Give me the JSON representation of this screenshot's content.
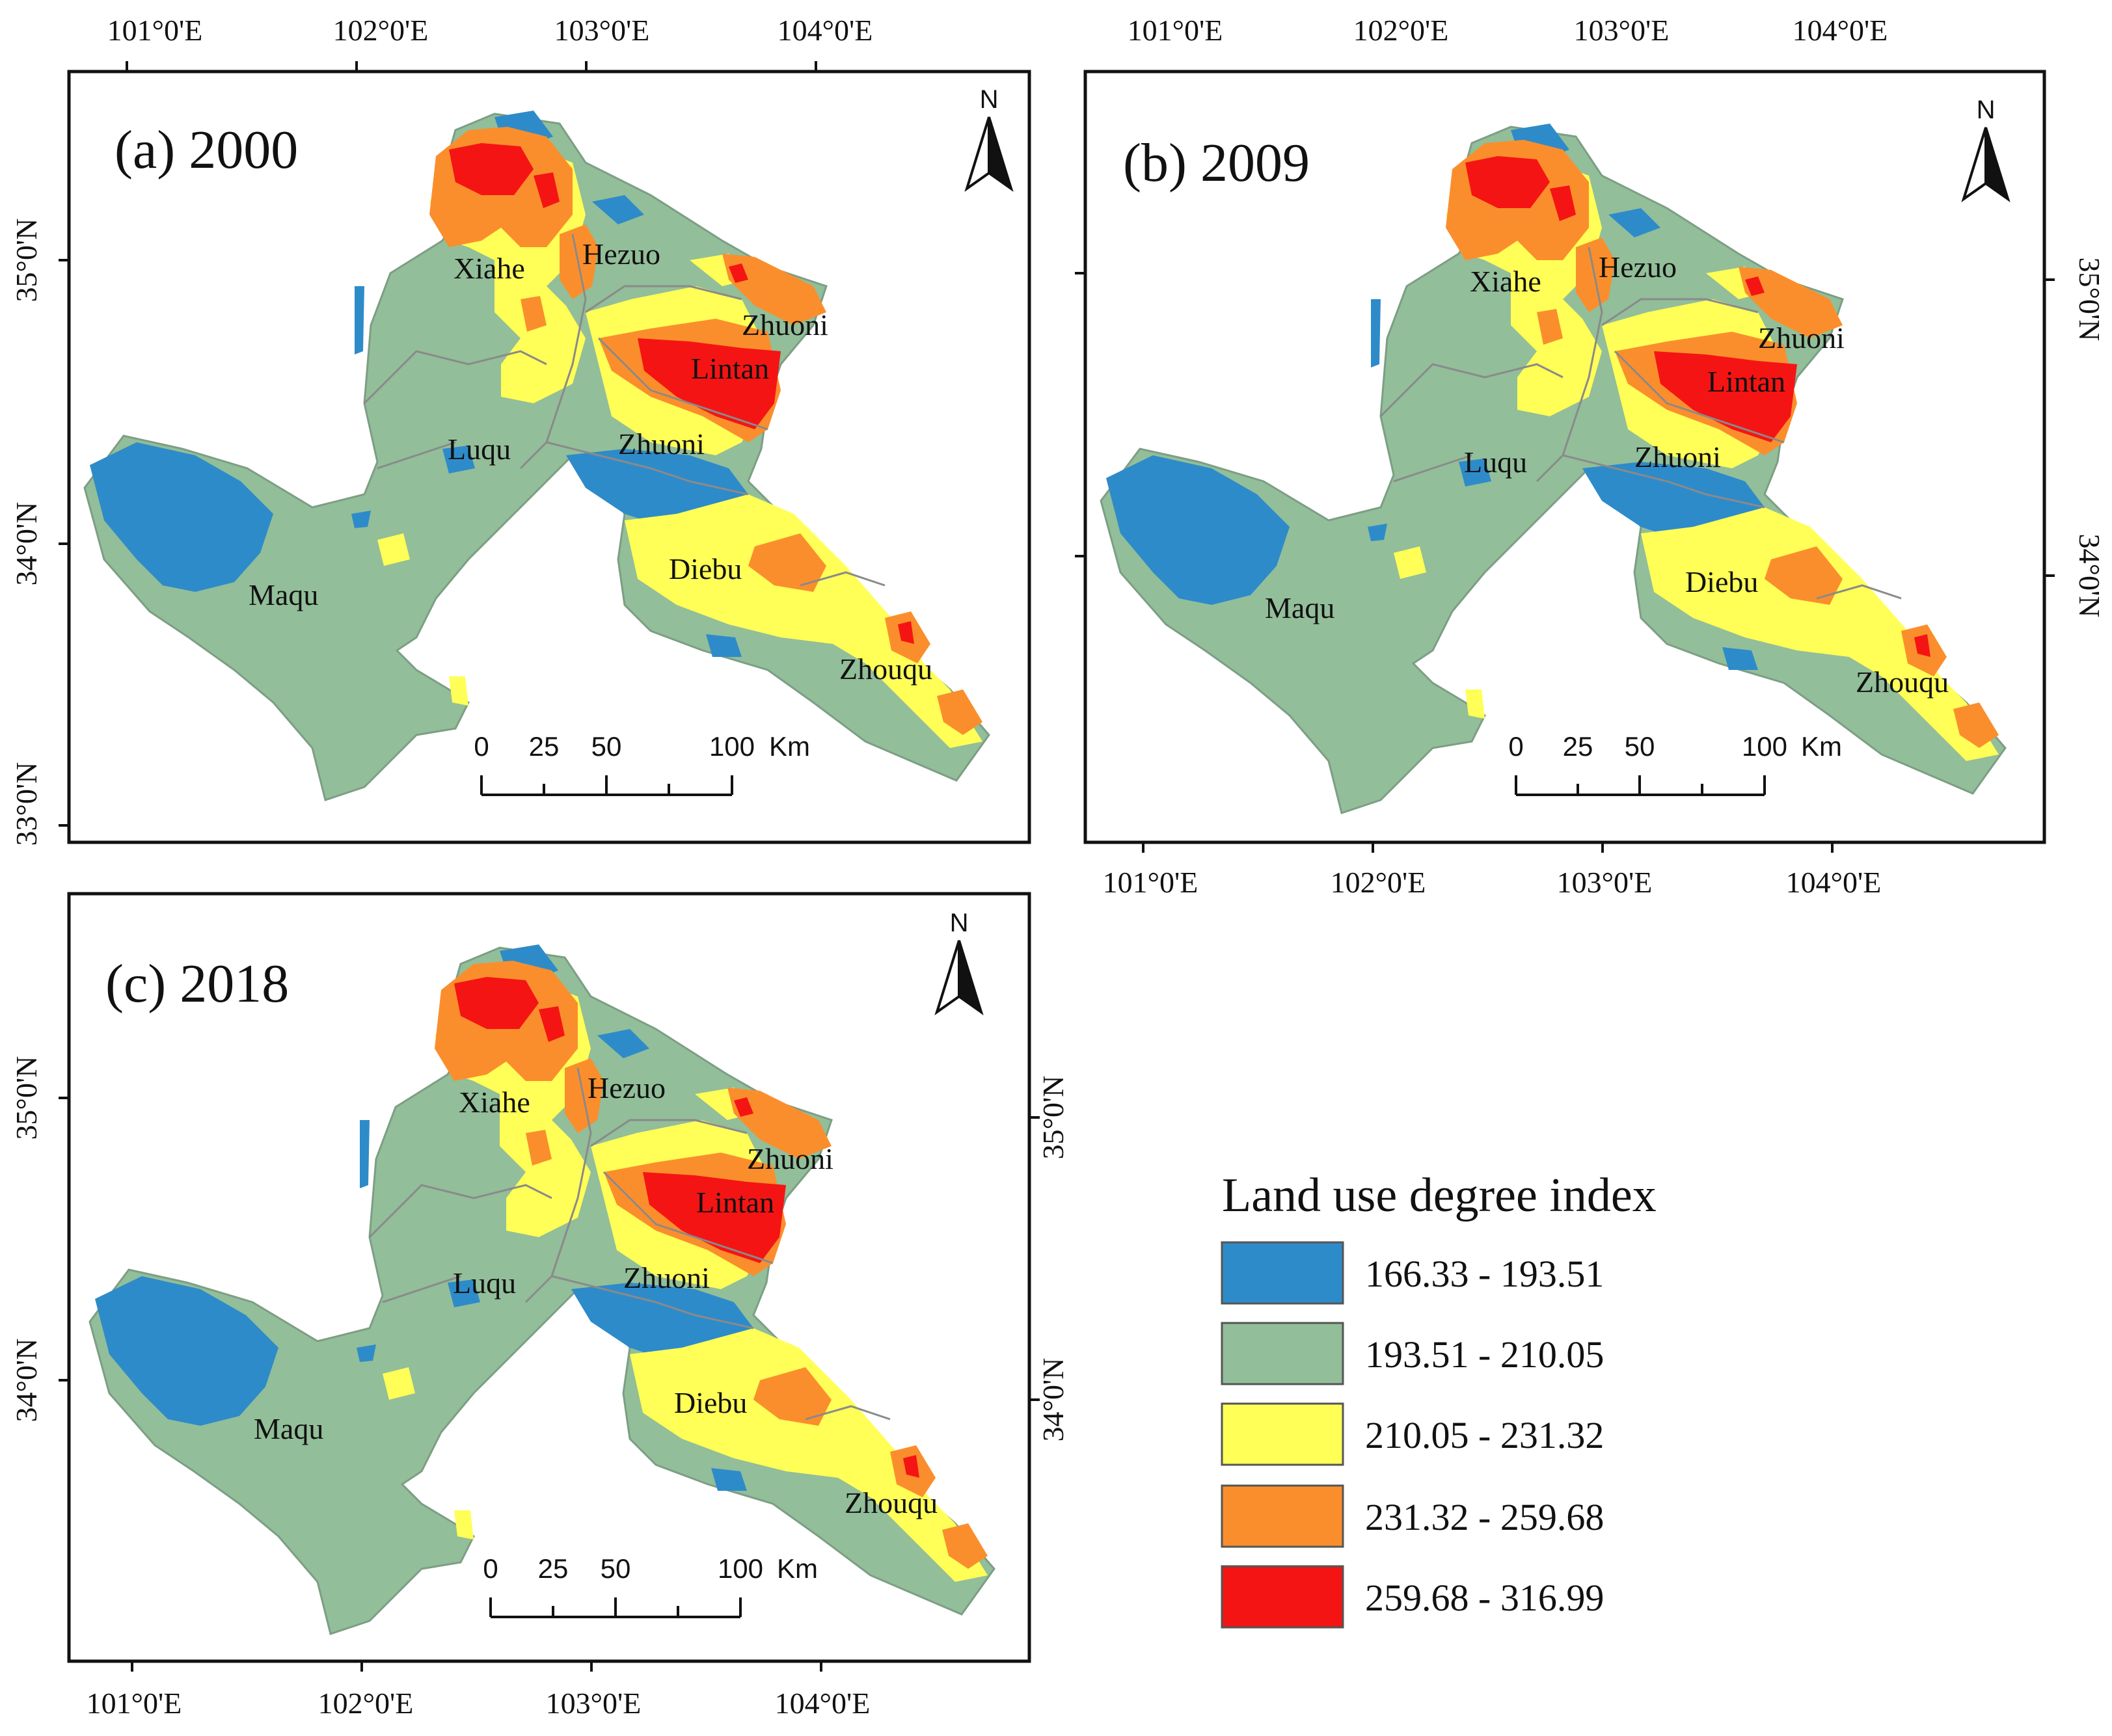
{
  "colors": {
    "class1": "#2e8bc9",
    "class2": "#92be99",
    "class3": "#ffff57",
    "class4": "#fb8e2c",
    "class5": "#f51414",
    "boundary": "#8a8a8a",
    "frame": "#111111"
  },
  "coords": {
    "lon": [
      "101°0'E",
      "102°0'E",
      "103°0'E",
      "104°0'E"
    ],
    "lat": [
      "35°0'N",
      "34°0'N",
      "33°0'N"
    ]
  },
  "north_label": "N",
  "scale": {
    "ticks": [
      "0",
      "25",
      "50",
      "100"
    ],
    "unit": "Km"
  },
  "counties": [
    "Xiahe",
    "Hezuo",
    "Zhuoni",
    "Lintan",
    "Luqu",
    "Zhuoni",
    "Maqu",
    "Diebu",
    "Zhouqu"
  ],
  "panels": [
    {
      "title": "(a) 2000"
    },
    {
      "title": "(b) 2009"
    },
    {
      "title": "(c) 2018"
    }
  ],
  "legend": {
    "title": "Land use degree index",
    "items": [
      {
        "label": "166.33 - 193.51",
        "color": "#2e8bc9"
      },
      {
        "label": "193.51 - 210.05",
        "color": "#92be99"
      },
      {
        "label": "210.05 - 231.32",
        "color": "#ffff57"
      },
      {
        "label": "231.32 - 259.68",
        "color": "#fb8e2c"
      },
      {
        "label": "259.68 - 316.99",
        "color": "#f51414"
      }
    ]
  }
}
